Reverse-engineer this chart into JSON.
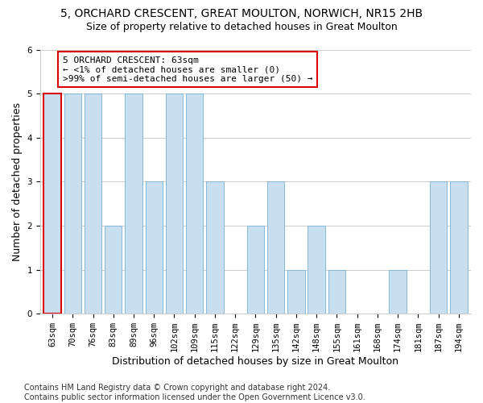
{
  "title1": "5, ORCHARD CRESCENT, GREAT MOULTON, NORWICH, NR15 2HB",
  "title2": "Size of property relative to detached houses in Great Moulton",
  "xlabel": "Distribution of detached houses by size in Great Moulton",
  "ylabel": "Number of detached properties",
  "footnote": "Contains HM Land Registry data © Crown copyright and database right 2024.\nContains public sector information licensed under the Open Government Licence v3.0.",
  "categories": [
    "63sqm",
    "70sqm",
    "76sqm",
    "83sqm",
    "89sqm",
    "96sqm",
    "102sqm",
    "109sqm",
    "115sqm",
    "122sqm",
    "129sqm",
    "135sqm",
    "142sqm",
    "148sqm",
    "155sqm",
    "161sqm",
    "168sqm",
    "174sqm",
    "181sqm",
    "187sqm",
    "194sqm"
  ],
  "values": [
    5,
    5,
    5,
    2,
    5,
    3,
    5,
    5,
    3,
    0,
    2,
    3,
    1,
    2,
    1,
    0,
    0,
    1,
    0,
    3,
    3
  ],
  "bar_color": "#c8dff0",
  "bar_edge_color": "#7ab0d4",
  "highlight_index": 0,
  "highlight_color": "#dd0000",
  "annotation_box_facecolor": "#ffffff",
  "annotation_border_color": "#dd0000",
  "annotation_text_line1": "5 ORCHARD CRESCENT: 63sqm",
  "annotation_text_line2": "← <1% of detached houses are smaller (0)",
  "annotation_text_line3": ">99% of semi-detached houses are larger (50) →",
  "ylim": [
    0,
    6
  ],
  "yticks": [
    0,
    1,
    2,
    3,
    4,
    5,
    6
  ],
  "title1_fontsize": 10,
  "title2_fontsize": 9,
  "xlabel_fontsize": 9,
  "ylabel_fontsize": 9,
  "tick_fontsize": 7.5,
  "annotation_fontsize": 8,
  "footnote_fontsize": 7,
  "background_color": "#ffffff",
  "grid_color": "#cccccc"
}
